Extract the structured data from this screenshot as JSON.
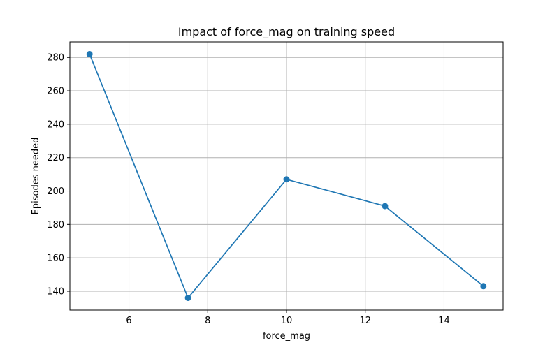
{
  "chart_data": {
    "type": "line",
    "title": "Impact of force_mag on training speed",
    "xlabel": "force_mag",
    "ylabel": "Episodes needed",
    "grid": true,
    "xlim": [
      4.5,
      15.5
    ],
    "ylim": [
      128.7,
      289.3
    ],
    "x_ticks": [
      6,
      8,
      10,
      12,
      14
    ],
    "y_ticks": [
      140,
      160,
      180,
      200,
      220,
      240,
      260,
      280
    ],
    "series": [
      {
        "color": "#1f77b4",
        "marker": "circle",
        "x": [
          5.0,
          7.5,
          10.0,
          12.5,
          15.0
        ],
        "y": [
          282,
          136,
          207,
          191,
          143
        ]
      }
    ]
  }
}
